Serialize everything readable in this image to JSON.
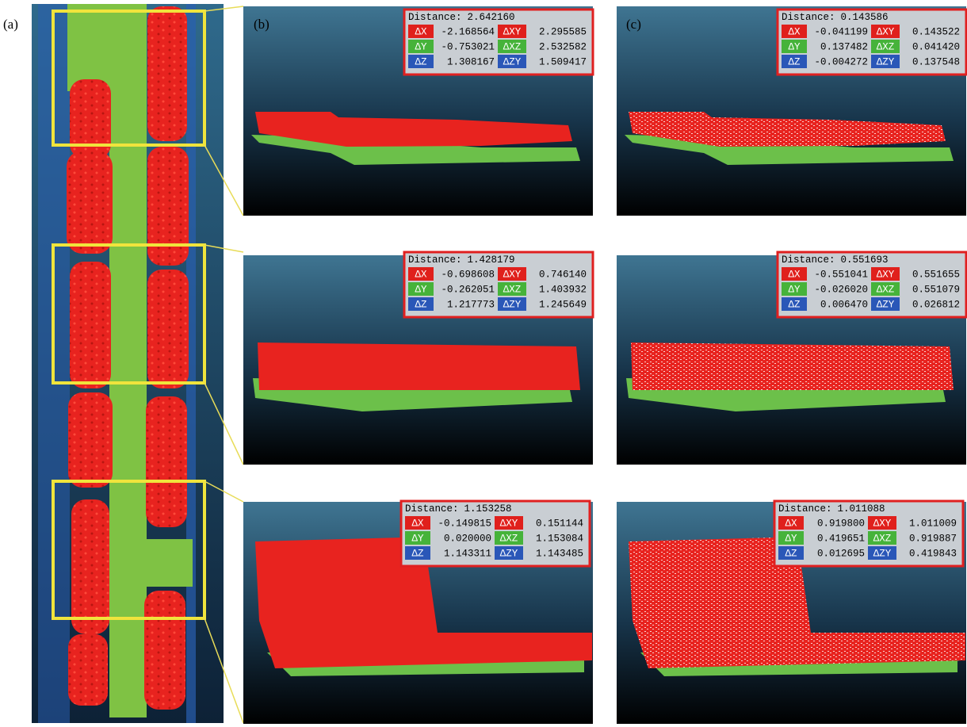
{
  "figure": {
    "panel_labels": [
      "(a)",
      "(b)",
      "(c)"
    ],
    "distance_label": "Distance:",
    "delta_labels": [
      [
        "ΔX",
        "ΔXY"
      ],
      [
        "ΔY",
        "ΔXZ"
      ],
      [
        "ΔZ",
        "ΔZY"
      ]
    ],
    "panels": [
      {
        "distance": "2.642160",
        "rows": [
          [
            "-2.168564",
            "2.295585"
          ],
          [
            "-0.753021",
            "2.532582"
          ],
          [
            "1.308167",
            "1.509417"
          ]
        ]
      },
      {
        "distance": "0.143586",
        "rows": [
          [
            "-0.041199",
            "0.143522"
          ],
          [
            "0.137482",
            "0.041420"
          ],
          [
            "-0.004272",
            "0.137548"
          ]
        ]
      },
      {
        "distance": "1.428179",
        "rows": [
          [
            "-0.698608",
            "0.746140"
          ],
          [
            "-0.262051",
            "1.403932"
          ],
          [
            "1.217773",
            "1.245649"
          ]
        ]
      },
      {
        "distance": "0.551693",
        "rows": [
          [
            "-0.551041",
            "0.551655"
          ],
          [
            "-0.026020",
            "0.551079"
          ],
          [
            "0.006470",
            "0.026812"
          ]
        ]
      },
      {
        "distance": "1.153258",
        "rows": [
          [
            "-0.149815",
            "0.151144"
          ],
          [
            "0.020000",
            "1.153084"
          ],
          [
            "1.143311",
            "1.143485"
          ]
        ]
      },
      {
        "distance": "1.011088",
        "rows": [
          [
            "0.919800",
            "1.011009"
          ],
          [
            "0.419651",
            "0.919887"
          ],
          [
            "0.012695",
            "0.419843"
          ]
        ]
      }
    ]
  }
}
